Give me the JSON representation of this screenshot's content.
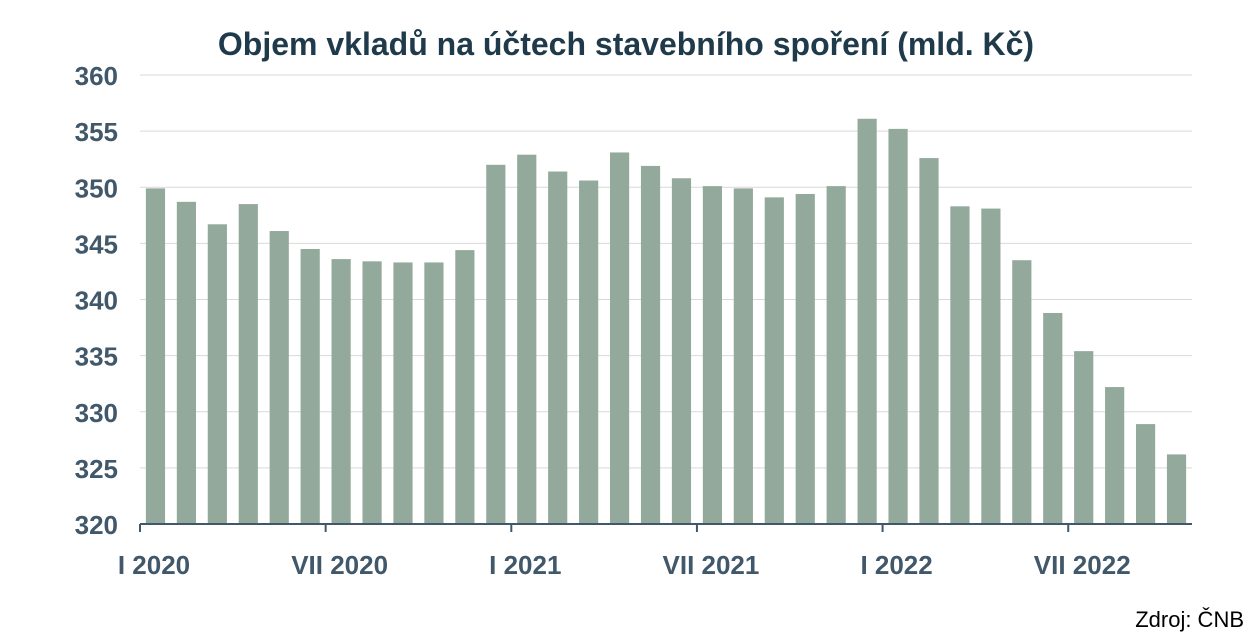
{
  "chart_data": {
    "type": "bar",
    "title": "Objem vkladů na účtech stavebního spoření (mld. Kč)",
    "xlabel": "",
    "ylabel": "",
    "ylim": [
      320,
      360
    ],
    "yticks": [
      320,
      325,
      330,
      335,
      340,
      345,
      350,
      355,
      360
    ],
    "xtick_labels": [
      {
        "index": 0,
        "label": "I 2020"
      },
      {
        "index": 6,
        "label": "VII 2020"
      },
      {
        "index": 12,
        "label": "I 2021"
      },
      {
        "index": 18,
        "label": "VII 2021"
      },
      {
        "index": 24,
        "label": "I 2022"
      },
      {
        "index": 30,
        "label": "VII 2022"
      }
    ],
    "values": [
      349.9,
      348.7,
      346.7,
      348.5,
      346.1,
      344.5,
      343.6,
      343.4,
      343.3,
      343.3,
      344.4,
      352.0,
      352.9,
      351.4,
      350.6,
      353.1,
      351.9,
      350.8,
      350.1,
      349.9,
      349.1,
      349.4,
      350.1,
      356.1,
      355.2,
      352.6,
      348.3,
      348.1,
      343.5,
      338.8,
      335.4,
      332.2,
      328.9,
      326.2
    ],
    "bar_color": "#93a99c",
    "gridlines": true,
    "source": "Zdroj: ČNB"
  }
}
